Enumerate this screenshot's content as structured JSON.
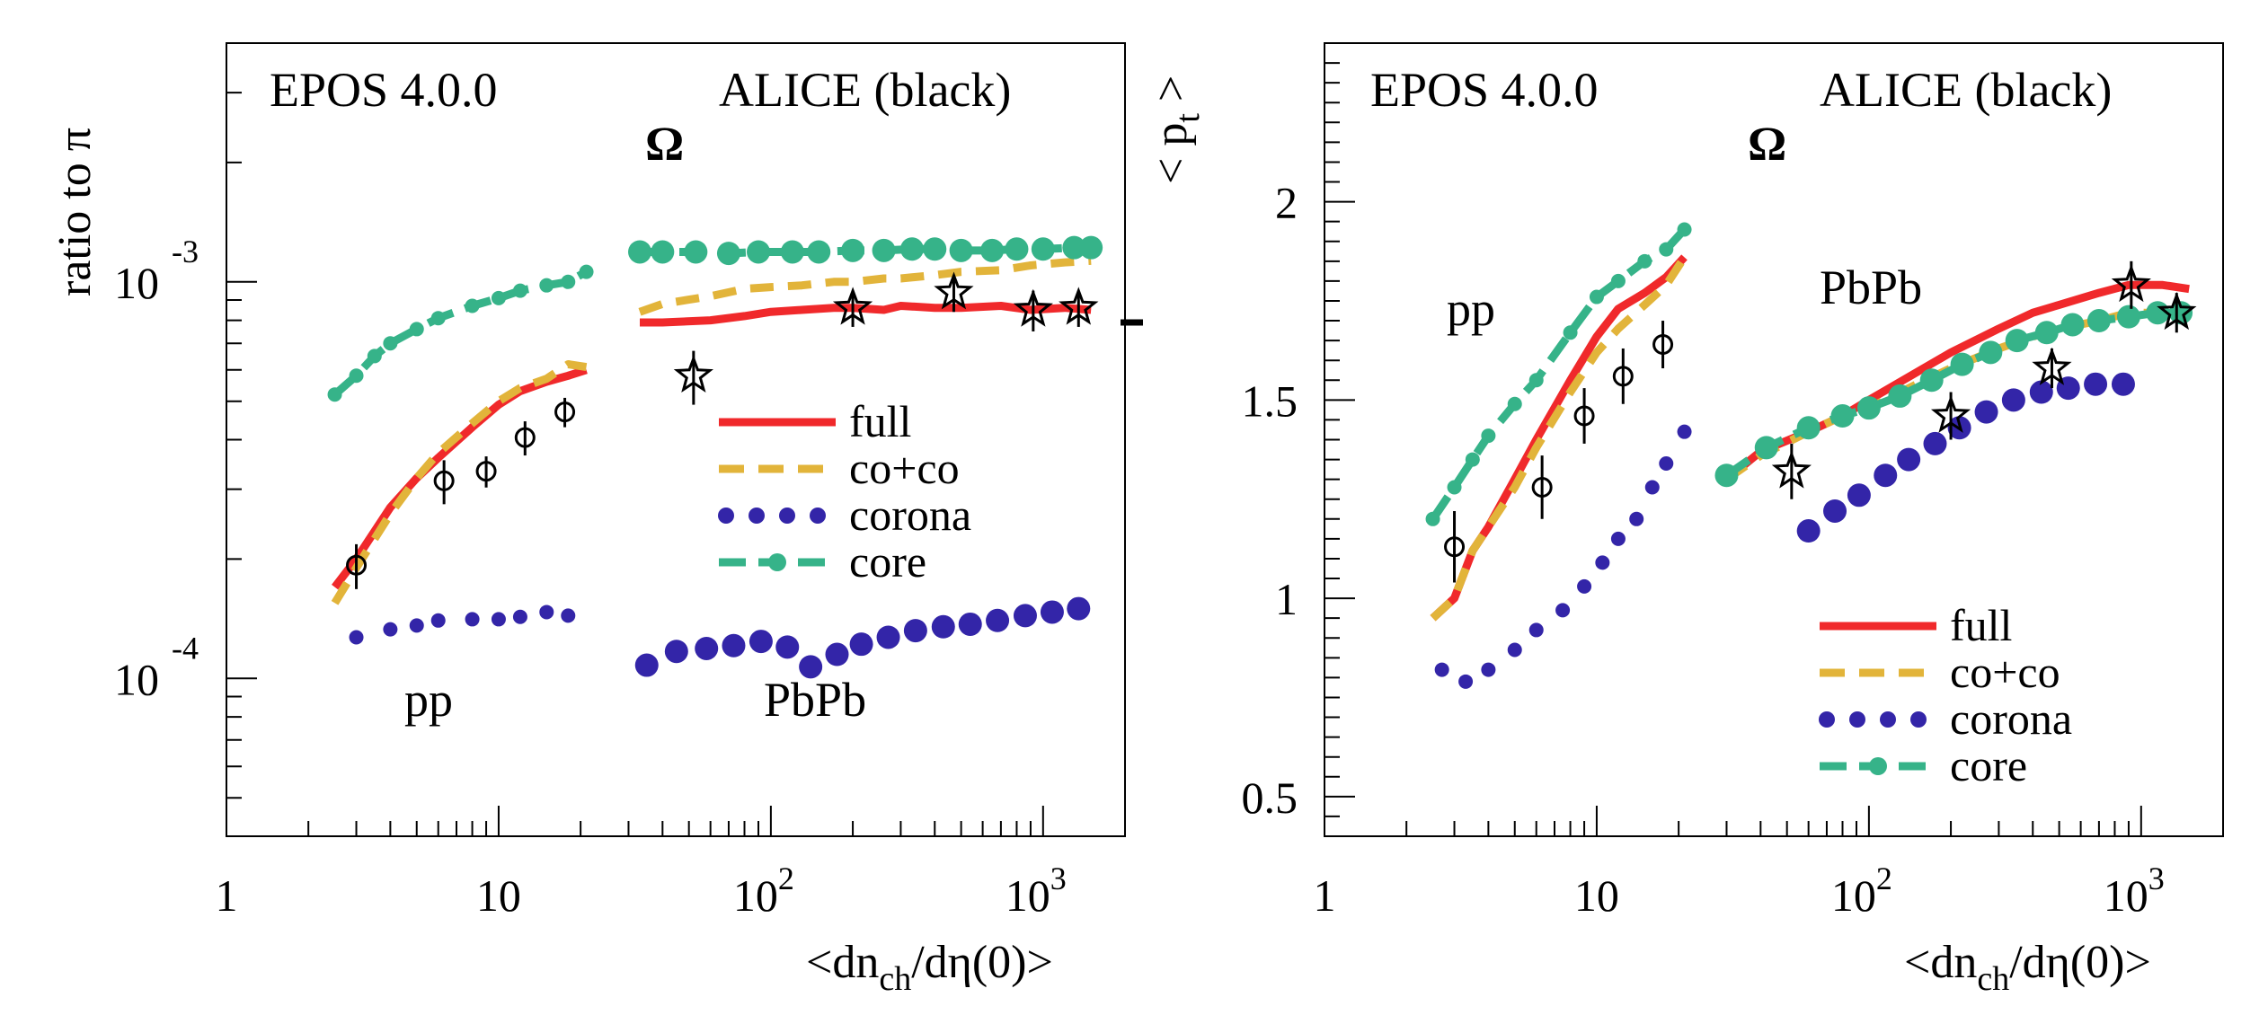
{
  "colors": {
    "full": "#f0292b",
    "coco": "#e2b43a",
    "corona": "#3325a8",
    "core": "#36b389",
    "data": "#000000"
  },
  "chart_data": [
    {
      "type": "line",
      "yscale": "log",
      "xscale": "log",
      "xlim": [
        1,
        2000
      ],
      "ylim": [
        4e-05,
        0.004
      ],
      "xlabel": "<dn",
      "xlabel_sub": "ch",
      "xlabel_tail": "/dη(0)>",
      "ylabel": "ratio to π",
      "y_ticks": [
        {
          "value": 0.001,
          "base": "10",
          "exp": "-3"
        },
        {
          "value": 0.0001,
          "base": "10",
          "exp": "-4"
        }
      ],
      "x_ticks": [
        {
          "value": 1,
          "base": "1",
          "exp": ""
        },
        {
          "value": 10,
          "base": "10",
          "exp": ""
        },
        {
          "value": 100,
          "base": "10",
          "exp": "2"
        },
        {
          "value": 1000,
          "base": "10",
          "exp": "3"
        }
      ],
      "annotations": {
        "model": "EPOS 4.0.0",
        "experiment": "ALICE (black)",
        "particle": "Ω",
        "system1": "pp",
        "system2": "PbPb"
      },
      "legend": [
        {
          "key": "full",
          "label": "full"
        },
        {
          "key": "coco",
          "label": "co+co"
        },
        {
          "key": "corona",
          "label": "corona"
        },
        {
          "key": "core",
          "label": "core"
        }
      ],
      "extra_marker": {
        "x": 1850,
        "y": 0.00079
      },
      "series": [
        {
          "name": "full",
          "system": "pp",
          "x": [
            2.5,
            3,
            4,
            5,
            6,
            8,
            10,
            12,
            15,
            18,
            21
          ],
          "y": [
            0.00017,
            0.0002,
            0.00027,
            0.00032,
            0.00036,
            0.00043,
            0.00049,
            0.00053,
            0.00056,
            0.00058,
            0.0006
          ]
        },
        {
          "name": "co+co",
          "system": "pp",
          "x": [
            2.5,
            3,
            4,
            5,
            6,
            8,
            10,
            12,
            15,
            18,
            21
          ],
          "y": [
            0.000155,
            0.00019,
            0.00026,
            0.00032,
            0.00037,
            0.00044,
            0.0005,
            0.00054,
            0.00057,
            0.00062,
            0.00061
          ]
        },
        {
          "name": "core",
          "system": "pp",
          "x": [
            2.5,
            3,
            3.5,
            4,
            5,
            6,
            8,
            10,
            12,
            15,
            18,
            21
          ],
          "y": [
            0.00052,
            0.00058,
            0.00065,
            0.0007,
            0.00076,
            0.00081,
            0.00087,
            0.00091,
            0.00095,
            0.00098,
            0.001,
            0.00106
          ]
        },
        {
          "name": "corona",
          "system": "pp",
          "x": [
            3,
            4,
            5,
            6,
            8,
            10,
            12,
            15,
            18
          ],
          "y": [
            0.000127,
            0.000133,
            0.000136,
            0.00014,
            0.000141,
            0.000141,
            0.000143,
            0.000147,
            0.000144
          ]
        },
        {
          "name": "full",
          "system": "PbPb",
          "x": [
            33,
            40,
            60,
            80,
            100,
            130,
            170,
            200,
            260,
            300,
            400,
            500,
            700,
            900,
            1200,
            1500
          ],
          "y": [
            0.00079,
            0.00079,
            0.0008,
            0.00082,
            0.00084,
            0.00085,
            0.00086,
            0.00086,
            0.00085,
            0.00087,
            0.00086,
            0.00086,
            0.00087,
            0.00085,
            0.00086,
            0.00085
          ]
        },
        {
          "name": "co+co",
          "system": "PbPb",
          "x": [
            33,
            40,
            60,
            80,
            100,
            130,
            170,
            200,
            260,
            300,
            400,
            500,
            700,
            900,
            1200,
            1500
          ],
          "y": [
            0.00084,
            0.00088,
            0.00092,
            0.00096,
            0.00097,
            0.00098,
            0.001,
            0.001,
            0.00102,
            0.00102,
            0.00104,
            0.00106,
            0.00107,
            0.0011,
            0.00112,
            0.00113
          ]
        },
        {
          "name": "core",
          "system": "PbPb",
          "x": [
            33,
            40,
            53,
            70,
            90,
            120,
            150,
            200,
            260,
            330,
            400,
            500,
            650,
            800,
            1000,
            1300,
            1500
          ],
          "y": [
            0.00119,
            0.00119,
            0.00119,
            0.00118,
            0.00119,
            0.00119,
            0.00119,
            0.0012,
            0.0012,
            0.00121,
            0.00121,
            0.0012,
            0.0012,
            0.00121,
            0.00121,
            0.00122,
            0.00122
          ]
        },
        {
          "name": "corona",
          "system": "PbPb",
          "x": [
            35,
            45,
            58,
            73,
            92,
            115,
            140,
            175,
            215,
            270,
            340,
            430,
            540,
            680,
            860,
            1080,
            1350
          ],
          "y": [
            0.000108,
            0.000117,
            0.000119,
            0.000121,
            0.000124,
            0.00012,
            0.000107,
            0.000115,
            0.000122,
            0.000127,
            0.000132,
            0.000135,
            0.000137,
            0.00014,
            0.000144,
            0.000147,
            0.00015
          ]
        },
        {
          "name": "ALICE",
          "system": "pp",
          "marker": "circle",
          "x": [
            3,
            6.3,
            9,
            12.5,
            17.5
          ],
          "y": [
            0.000193,
            0.000315,
            0.000333,
            0.000405,
            0.00047
          ],
          "yerr": [
            2.5e-05,
            4e-05,
            3e-05,
            4e-05,
            4e-05
          ]
        },
        {
          "name": "ALICE",
          "system": "PbPb",
          "marker": "star",
          "x": [
            52,
            200,
            470,
            920,
            1350
          ],
          "y": [
            0.00058,
            0.00086,
            0.00094,
            0.00085,
            0.00086
          ],
          "yerr": [
            9e-05,
            9e-05,
            0.0001,
            0.0001,
            9e-05
          ]
        }
      ]
    },
    {
      "type": "line",
      "yscale": "linear",
      "xscale": "log",
      "xlim": [
        1,
        2000
      ],
      "ylim": [
        0.4,
        2.4
      ],
      "xlabel": "<dn",
      "xlabel_sub": "ch",
      "xlabel_tail": "/dη(0)>",
      "ylabel": "< p",
      "ylabel_sub": "t",
      "ylabel_tail": " >",
      "y_ticks": [
        {
          "value": 0.5,
          "label": "0.5"
        },
        {
          "value": 1,
          "label": "1"
        },
        {
          "value": 1.5,
          "label": "1.5"
        },
        {
          "value": 2,
          "label": "2"
        }
      ],
      "x_ticks": [
        {
          "value": 1,
          "base": "1",
          "exp": ""
        },
        {
          "value": 10,
          "base": "10",
          "exp": ""
        },
        {
          "value": 100,
          "base": "10",
          "exp": "2"
        },
        {
          "value": 1000,
          "base": "10",
          "exp": "3"
        }
      ],
      "annotations": {
        "model": "EPOS 4.0.0",
        "experiment": "ALICE (black)",
        "particle": "Ω",
        "system1": "pp",
        "system2": "PbPb"
      },
      "legend": [
        {
          "key": "full",
          "label": "full"
        },
        {
          "key": "coco",
          "label": "co+co"
        },
        {
          "key": "corona",
          "label": "corona"
        },
        {
          "key": "core",
          "label": "core"
        }
      ],
      "series": [
        {
          "name": "full",
          "system": "pp",
          "x": [
            2.5,
            3,
            3.5,
            4,
            5,
            6,
            8,
            10,
            12,
            15,
            18,
            21
          ],
          "y": [
            0.95,
            1.0,
            1.12,
            1.18,
            1.3,
            1.4,
            1.55,
            1.66,
            1.73,
            1.77,
            1.81,
            1.86
          ]
        },
        {
          "name": "co+co",
          "system": "pp",
          "x": [
            2.5,
            3,
            3.5,
            4,
            5,
            6,
            8,
            10,
            12,
            15,
            18,
            21
          ],
          "y": [
            0.95,
            1.0,
            1.12,
            1.18,
            1.28,
            1.38,
            1.52,
            1.62,
            1.68,
            1.74,
            1.79,
            1.86
          ]
        },
        {
          "name": "core",
          "system": "pp",
          "x": [
            2.5,
            3,
            3.5,
            4,
            5,
            6,
            8,
            10,
            12,
            15,
            18,
            21
          ],
          "y": [
            1.2,
            1.28,
            1.35,
            1.41,
            1.49,
            1.55,
            1.67,
            1.76,
            1.8,
            1.85,
            1.88,
            1.93
          ]
        },
        {
          "name": "corona",
          "system": "pp",
          "x": [
            2.7,
            3.3,
            4,
            5,
            6,
            7.5,
            9,
            10.5,
            12,
            14,
            16,
            18,
            21
          ],
          "y": [
            0.82,
            0.79,
            0.82,
            0.87,
            0.92,
            0.97,
            1.03,
            1.09,
            1.15,
            1.2,
            1.28,
            1.34,
            1.42
          ]
        },
        {
          "name": "full",
          "system": "PbPb",
          "x": [
            30,
            40,
            60,
            80,
            100,
            150,
            200,
            300,
            400,
            500,
            700,
            900,
            1200,
            1500
          ],
          "y": [
            1.3,
            1.37,
            1.42,
            1.46,
            1.5,
            1.57,
            1.62,
            1.68,
            1.72,
            1.74,
            1.77,
            1.79,
            1.79,
            1.78
          ]
        },
        {
          "name": "co+co",
          "system": "PbPb",
          "x": [
            30,
            40,
            60,
            80,
            100,
            150,
            200,
            300,
            400,
            500,
            700,
            900,
            1200,
            1500
          ],
          "y": [
            1.3,
            1.36,
            1.42,
            1.46,
            1.48,
            1.54,
            1.58,
            1.63,
            1.66,
            1.68,
            1.7,
            1.72,
            1.72,
            1.72
          ]
        },
        {
          "name": "core",
          "system": "PbPb",
          "x": [
            30,
            42,
            60,
            80,
            100,
            130,
            170,
            220,
            280,
            350,
            450,
            560,
            700,
            900,
            1150,
            1400
          ],
          "y": [
            1.31,
            1.38,
            1.43,
            1.46,
            1.48,
            1.51,
            1.55,
            1.59,
            1.62,
            1.65,
            1.67,
            1.69,
            1.7,
            1.71,
            1.72,
            1.72
          ]
        },
        {
          "name": "corona",
          "system": "PbPb",
          "x": [
            60,
            75,
            92,
            115,
            140,
            175,
            215,
            270,
            340,
            430,
            540,
            680,
            860
          ],
          "y": [
            1.17,
            1.22,
            1.26,
            1.31,
            1.35,
            1.39,
            1.43,
            1.47,
            1.5,
            1.52,
            1.53,
            1.54,
            1.54
          ]
        },
        {
          "name": "ALICE",
          "system": "pp",
          "marker": "circle",
          "x": [
            3,
            6.3,
            9,
            12.5,
            17.5
          ],
          "y": [
            1.13,
            1.28,
            1.46,
            1.56,
            1.64
          ],
          "yerr": [
            0.09,
            0.08,
            0.07,
            0.07,
            0.06
          ]
        },
        {
          "name": "ALICE",
          "system": "PbPb",
          "marker": "star",
          "x": [
            52,
            200,
            470,
            920,
            1350
          ],
          "y": [
            1.32,
            1.46,
            1.58,
            1.79,
            1.72
          ],
          "yerr": [
            0.07,
            0.06,
            0.05,
            0.06,
            0.05
          ]
        }
      ]
    }
  ]
}
